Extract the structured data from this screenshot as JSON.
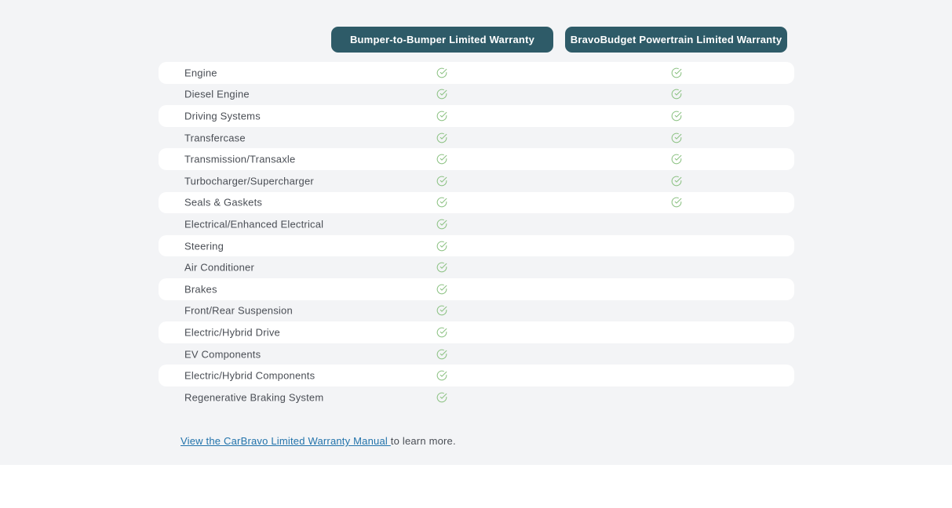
{
  "colors": {
    "section_background": "#f3f4f6",
    "stripe_background": "#ffffff",
    "pill_background": "#2e5b68",
    "pill_text": "#ffffff",
    "row_text": "#4a4e55",
    "check_green": "#8cc283",
    "link_blue": "#2273ab"
  },
  "header": {
    "columns": [
      {
        "label": "Bumper-to-Bumper Limited Warranty"
      },
      {
        "label": "BravoBudget Powertrain Limited Warranty"
      }
    ]
  },
  "checkmark": {
    "icon": "check-circle-icon",
    "color": "#8cc283"
  },
  "table": {
    "rows": [
      {
        "label": "Engine",
        "bumper_to_bumper": true,
        "powertrain": true
      },
      {
        "label": "Diesel Engine",
        "bumper_to_bumper": true,
        "powertrain": true
      },
      {
        "label": "Driving Systems",
        "bumper_to_bumper": true,
        "powertrain": true
      },
      {
        "label": "Transfercase",
        "bumper_to_bumper": true,
        "powertrain": true
      },
      {
        "label": "Transmission/Transaxle",
        "bumper_to_bumper": true,
        "powertrain": true
      },
      {
        "label": "Turbocharger/Supercharger",
        "bumper_to_bumper": true,
        "powertrain": true
      },
      {
        "label": "Seals & Gaskets",
        "bumper_to_bumper": true,
        "powertrain": true
      },
      {
        "label": "Electrical/Enhanced Electrical",
        "bumper_to_bumper": true,
        "powertrain": false
      },
      {
        "label": "Steering",
        "bumper_to_bumper": true,
        "powertrain": false
      },
      {
        "label": "Air Conditioner",
        "bumper_to_bumper": true,
        "powertrain": false
      },
      {
        "label": "Brakes",
        "bumper_to_bumper": true,
        "powertrain": false
      },
      {
        "label": "Front/Rear Suspension",
        "bumper_to_bumper": true,
        "powertrain": false
      },
      {
        "label": "Electric/Hybrid Drive",
        "bumper_to_bumper": true,
        "powertrain": false
      },
      {
        "label": "EV Components",
        "bumper_to_bumper": true,
        "powertrain": false
      },
      {
        "label": "Electric/Hybrid Components",
        "bumper_to_bumper": true,
        "powertrain": false
      },
      {
        "label": "Regenerative Braking System",
        "bumper_to_bumper": true,
        "powertrain": false
      }
    ]
  },
  "footer": {
    "link_text": "View the CarBravo Limited Warranty Manual ",
    "suffix_text": "to learn more."
  }
}
